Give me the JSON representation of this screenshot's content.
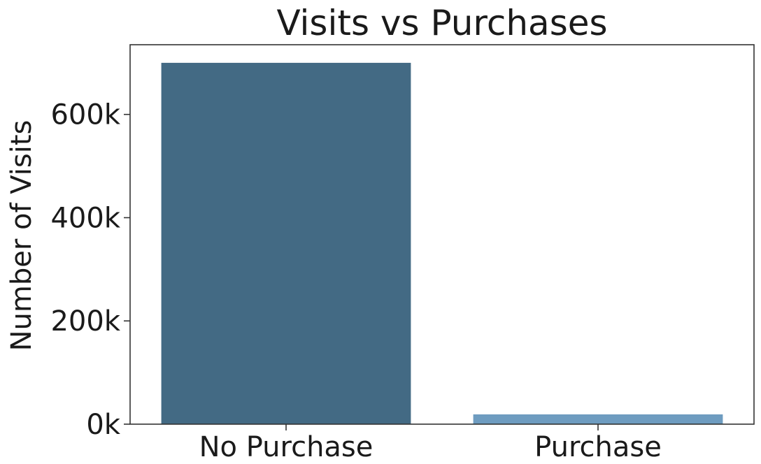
{
  "chart_data": {
    "type": "bar",
    "title": "Visits vs Purchases",
    "xlabel": "",
    "ylabel": "Number of Visits",
    "categories": [
      "No Purchase",
      "Purchase"
    ],
    "values": [
      700000,
      19000
    ],
    "colors": [
      "#436a84",
      "#6e9cc0"
    ],
    "ylim": [
      0,
      735000
    ],
    "yticks": [
      0,
      200000,
      400000,
      600000
    ],
    "ytick_labels": [
      "0k",
      "200k",
      "400k",
      "600k"
    ],
    "grid": false,
    "legend": "none"
  }
}
